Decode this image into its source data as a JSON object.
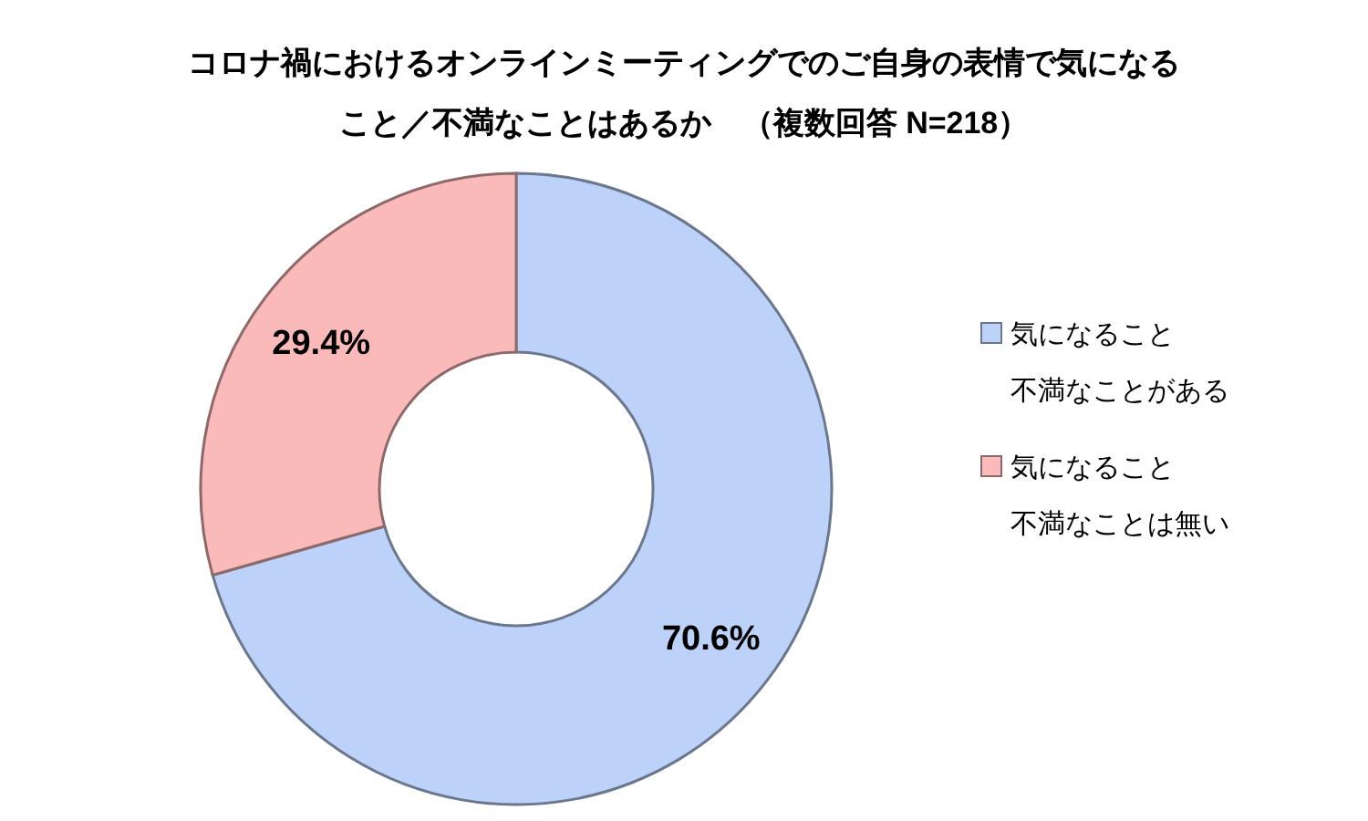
{
  "chart_data": {
    "type": "donut",
    "title": "コロナ禍におけるオンラインミーティングでのご自身の表情で気になること／不満なことはあるか　（複数回答 N=218）",
    "categories": [
      "気になること不満なことがある",
      "気になること不満なことは無い"
    ],
    "values": [
      70.6,
      29.4
    ],
    "colors": [
      "#bcd2f8",
      "#fbbaba"
    ],
    "value_labels": [
      "70.6%",
      "29.4%"
    ],
    "legend": "right"
  }
}
